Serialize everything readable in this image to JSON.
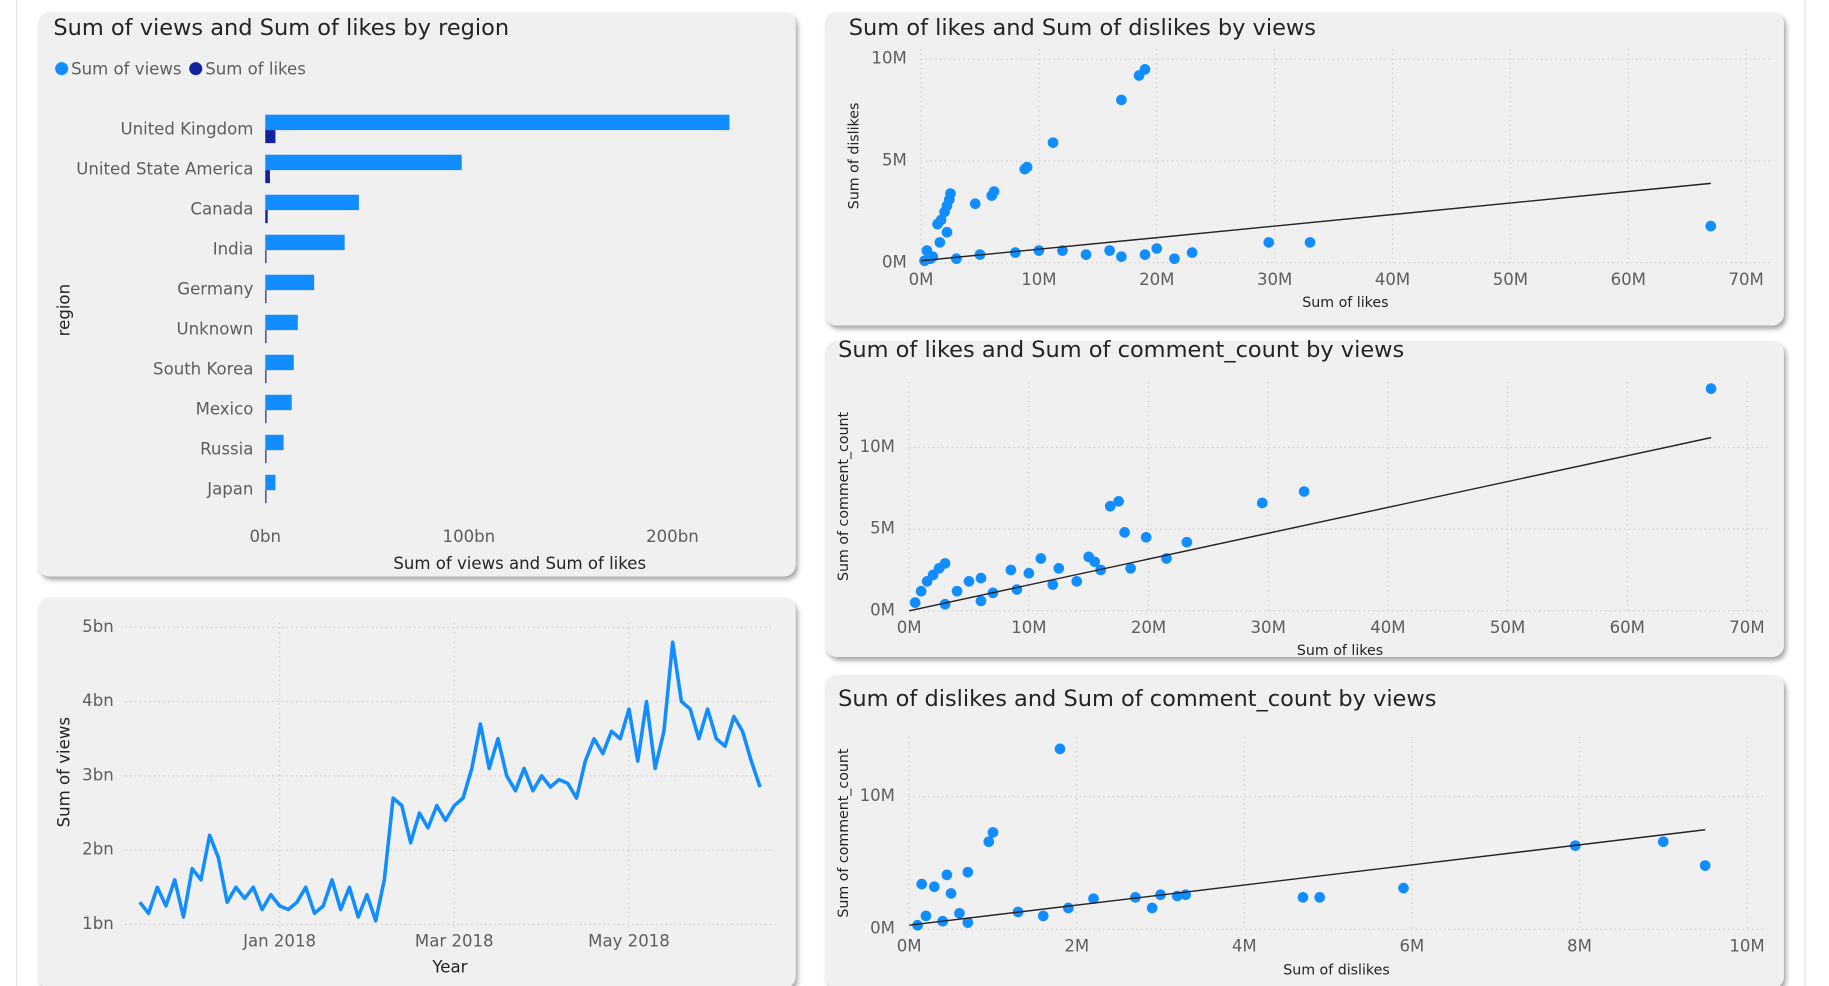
{
  "chart_data": [
    {
      "type": "bar",
      "orientation": "horizontal",
      "title": "Sum of views and Sum of likes by region",
      "x_label": "Sum of views and Sum of likes",
      "y_label": "region",
      "categories": [
        "United Kingdom",
        "United State America",
        "Canada",
        "India",
        "Germany",
        "Unknown",
        "South Korea",
        "Mexico",
        "Russia",
        "Japan"
      ],
      "series": [
        {
          "name": "Sum of views",
          "color": "#118dff",
          "values": [
            228,
            96.5,
            46,
            39,
            24,
            16,
            14,
            13,
            9,
            5
          ]
        },
        {
          "name": "Sum of likes",
          "color": "#12239e",
          "values": [
            5,
            2.3,
            1.2,
            0.4,
            0.5,
            0.3,
            0.3,
            0.3,
            0.2,
            0.2
          ]
        }
      ],
      "xlim": [
        0,
        250
      ],
      "xticks": [
        {
          "value": 0,
          "label": "0bn"
        },
        {
          "value": 100,
          "label": "100bn"
        },
        {
          "value": 200,
          "label": "200bn"
        }
      ],
      "grid": false,
      "legend": "top-left"
    },
    {
      "type": "line",
      "x_label": "Year",
      "y_label": "Sum of views",
      "color": "#118dff",
      "categories": [
        null,
        null,
        null,
        null,
        null,
        null,
        null,
        null,
        null,
        null,
        null,
        null,
        null,
        null,
        null,
        null,
        "Jan 2018",
        null,
        null,
        null,
        null,
        null,
        null,
        null,
        null,
        null,
        null,
        null,
        null,
        null,
        null,
        null,
        null,
        null,
        null,
        null,
        "Mar 2018",
        null,
        null,
        null,
        null,
        null,
        null,
        null,
        null,
        null,
        null,
        null,
        null,
        null,
        null,
        null,
        null,
        null,
        null,
        null,
        "May 2018",
        null,
        null,
        null,
        null,
        null,
        null,
        null,
        null,
        null,
        null,
        null,
        null,
        null,
        null,
        null
      ],
      "values": [
        1.3,
        1.15,
        1.5,
        1.25,
        1.6,
        1.1,
        1.75,
        1.6,
        2.2,
        1.9,
        1.3,
        1.5,
        1.35,
        1.5,
        1.2,
        1.4,
        1.25,
        1.2,
        1.3,
        1.5,
        1.15,
        1.25,
        1.6,
        1.2,
        1.5,
        1.1,
        1.4,
        1.05,
        1.6,
        2.7,
        2.6,
        2.1,
        2.5,
        2.3,
        2.6,
        2.4,
        2.6,
        2.7,
        3.1,
        3.7,
        3.1,
        3.5,
        3.0,
        2.8,
        3.1,
        2.8,
        3.0,
        2.85,
        2.95,
        2.9,
        2.7,
        3.2,
        3.5,
        3.3,
        3.6,
        3.5,
        3.9,
        3.2,
        4.0,
        3.1,
        3.6,
        4.8,
        4.0,
        3.9,
        3.5,
        3.9,
        3.5,
        3.4,
        3.8,
        3.6,
        3.2,
        2.85
      ],
      "ylim": [
        0.85,
        5.25
      ],
      "yticks": [
        {
          "value": 1,
          "label": "1bn"
        },
        {
          "value": 2,
          "label": "2bn"
        },
        {
          "value": 3,
          "label": "3bn"
        },
        {
          "value": 4,
          "label": "4bn"
        },
        {
          "value": 5,
          "label": "5bn"
        }
      ],
      "grid": true
    },
    {
      "type": "scatter",
      "title": "Sum of likes and Sum of dislikes by views",
      "x_label": "Sum of likes",
      "y_label": "Sum of dislikes",
      "color": "#118dff",
      "x": [
        17,
        18.5,
        19,
        11.2,
        9,
        8.8,
        6,
        6.2,
        4.6,
        2.5,
        2.4,
        2.2,
        2,
        1.7,
        1.4,
        2.2,
        1.6,
        0.5,
        1,
        3,
        5,
        8,
        10,
        12,
        14,
        16,
        17,
        19,
        20,
        21.5,
        23,
        29.5,
        33,
        67,
        0.3,
        0.8
      ],
      "y": [
        8,
        9.2,
        9.5,
        5.9,
        4.7,
        4.6,
        3.3,
        3.5,
        2.9,
        3.4,
        3.1,
        2.8,
        2.5,
        2.1,
        1.9,
        1.5,
        1,
        0.6,
        0.3,
        0.2,
        0.4,
        0.5,
        0.6,
        0.6,
        0.4,
        0.6,
        0.3,
        0.4,
        0.7,
        0.2,
        0.5,
        1,
        1,
        1.8,
        0.1,
        0.2
      ],
      "trendline": {
        "x": [
          0,
          67
        ],
        "y": [
          0.1,
          3.9
        ]
      },
      "xlim": [
        0,
        72
      ],
      "ylim": [
        0,
        10.5
      ],
      "xticks": [
        {
          "value": 0,
          "label": "0M"
        },
        {
          "value": 10,
          "label": "10M"
        },
        {
          "value": 20,
          "label": "20M"
        },
        {
          "value": 30,
          "label": "30M"
        },
        {
          "value": 40,
          "label": "40M"
        },
        {
          "value": 50,
          "label": "50M"
        },
        {
          "value": 60,
          "label": "60M"
        },
        {
          "value": 70,
          "label": "70M"
        }
      ],
      "yticks": [
        {
          "value": 0,
          "label": "0M"
        },
        {
          "value": 5,
          "label": "5M"
        },
        {
          "value": 10,
          "label": "10M"
        }
      ],
      "grid": true
    },
    {
      "type": "scatter",
      "title": "Sum of likes and Sum of comment_count by views",
      "x_label": "Sum of likes",
      "y_label": "Sum of comment_count",
      "color": "#118dff",
      "x": [
        67,
        33,
        29.5,
        17.5,
        16.8,
        18,
        19.8,
        23.2,
        21.5,
        18.5,
        15.5,
        15,
        16,
        11,
        12.5,
        10,
        8.5,
        6,
        5,
        3,
        2.5,
        2,
        1.5,
        1,
        4,
        7,
        9,
        12,
        14,
        0.5,
        3,
        6
      ],
      "y": [
        13.6,
        7.3,
        6.6,
        6.7,
        6.4,
        4.8,
        4.5,
        4.2,
        3.2,
        2.6,
        3,
        3.3,
        2.5,
        3.2,
        2.6,
        2.3,
        2.5,
        2,
        1.8,
        2.9,
        2.6,
        2.2,
        1.8,
        1.2,
        1.2,
        1.1,
        1.3,
        1.6,
        1.8,
        0.5,
        0.4,
        0.6
      ],
      "trendline": {
        "x": [
          0,
          67
        ],
        "y": [
          0,
          10.6
        ]
      },
      "xlim": [
        0,
        72
      ],
      "ylim": [
        0,
        14
      ],
      "xticks": [
        {
          "value": 0,
          "label": "0M"
        },
        {
          "value": 10,
          "label": "10M"
        },
        {
          "value": 20,
          "label": "20M"
        },
        {
          "value": 30,
          "label": "30M"
        },
        {
          "value": 40,
          "label": "40M"
        },
        {
          "value": 50,
          "label": "50M"
        },
        {
          "value": 60,
          "label": "60M"
        },
        {
          "value": 70,
          "label": "70M"
        }
      ],
      "yticks": [
        {
          "value": 0,
          "label": "0M"
        },
        {
          "value": 5,
          "label": "5M"
        },
        {
          "value": 10,
          "label": "10M"
        }
      ],
      "grid": true
    },
    {
      "type": "scatter",
      "title": "Sum of dislikes and Sum of comment_count by views",
      "x_label": "Sum of dislikes",
      "y_label": "Sum of comment_count",
      "color": "#118dff",
      "x": [
        1.8,
        1,
        0.95,
        0.7,
        0.45,
        0.3,
        0.15,
        0.5,
        0.6,
        1.3,
        1.6,
        1.9,
        2.2,
        2.7,
        3,
        3.2,
        2.9,
        3.3,
        4.7,
        4.9,
        5.9,
        7.95,
        9,
        9.5,
        0.2,
        0.4,
        0.1,
        0.7
      ],
      "y": [
        13.6,
        7.3,
        6.6,
        4.3,
        4.1,
        3.2,
        3.4,
        2.7,
        1.2,
        1.3,
        1,
        1.6,
        2.3,
        2.4,
        2.6,
        2.5,
        1.6,
        2.6,
        2.4,
        2.4,
        3.1,
        6.3,
        6.6,
        4.8,
        1,
        0.6,
        0.3,
        0.5
      ],
      "trendline": {
        "x": [
          0,
          9.5
        ],
        "y": [
          0.3,
          7.5
        ]
      },
      "xlim": [
        0,
        10.2
      ],
      "ylim": [
        0,
        14.5
      ],
      "xticks": [
        {
          "value": 0,
          "label": "0M"
        },
        {
          "value": 2,
          "label": "2M"
        },
        {
          "value": 4,
          "label": "4M"
        },
        {
          "value": 6,
          "label": "6M"
        },
        {
          "value": 8,
          "label": "8M"
        },
        {
          "value": 10,
          "label": "10M"
        }
      ],
      "yticks": [
        {
          "value": 0,
          "label": "0M"
        },
        {
          "value": 10,
          "label": "10M"
        }
      ],
      "grid": true
    }
  ]
}
